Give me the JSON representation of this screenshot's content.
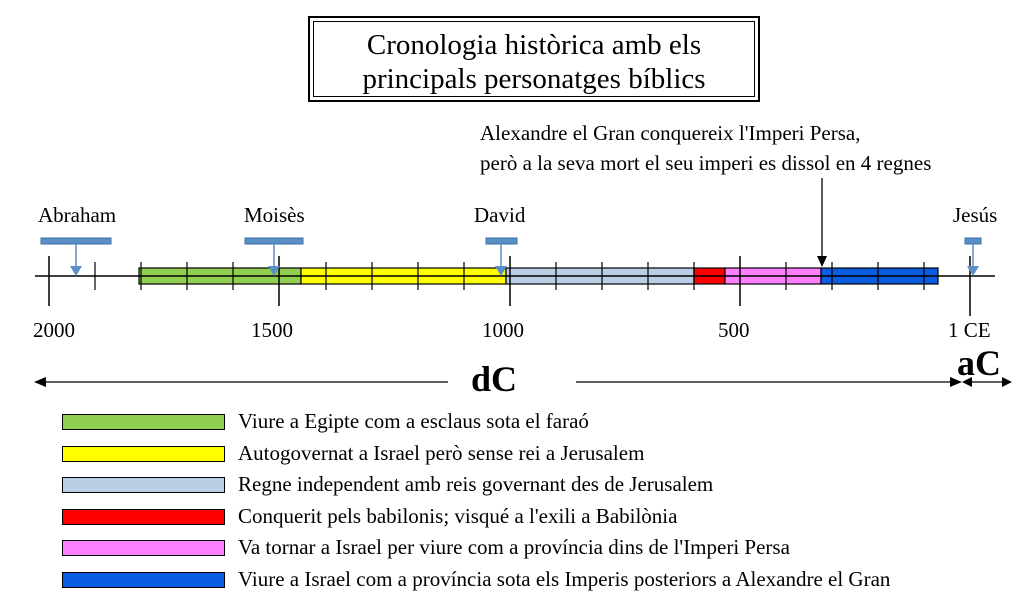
{
  "title": {
    "line1": "Cronologia històrica amb els",
    "line2": "principals personatges bíblics"
  },
  "annotation": {
    "line1": "Alexandre el Gran conquereix l'Imperi Persa,",
    "line2": "però a la seva mort el seu imperi es dissol en 4 regnes"
  },
  "people": [
    {
      "name": "Abraham"
    },
    {
      "name": "Moisès"
    },
    {
      "name": "David"
    },
    {
      "name": "Jesús"
    }
  ],
  "axis": {
    "ticks": [
      "2000",
      "1500",
      "1000",
      "500",
      "1 CE"
    ]
  },
  "eras": {
    "left": "dC",
    "right": "aC"
  },
  "legend": [
    {
      "label": "Viure a Egipte com a esclaus sota el faraó",
      "color": "#8fce4f"
    },
    {
      "label": "Autogovernat a Israel però sense rei a Jerusalem",
      "color": "#ffff00"
    },
    {
      "label": "Regne independent amb reis governant des de Jerusalem",
      "color": "#b9cfe6"
    },
    {
      "label": "Conquerit pels babilonis; visqué a l'exili a Babilònia",
      "color": "#ff0000"
    },
    {
      "label": "Va tornar a Israel per viure com a província dins de l'Imperi Persa",
      "color": "#ff80ff"
    },
    {
      "label": "Viure a Israel com a província sota els Imperis posteriors a Alexandre el Gran",
      "color": "#0a5ce0"
    }
  ]
}
